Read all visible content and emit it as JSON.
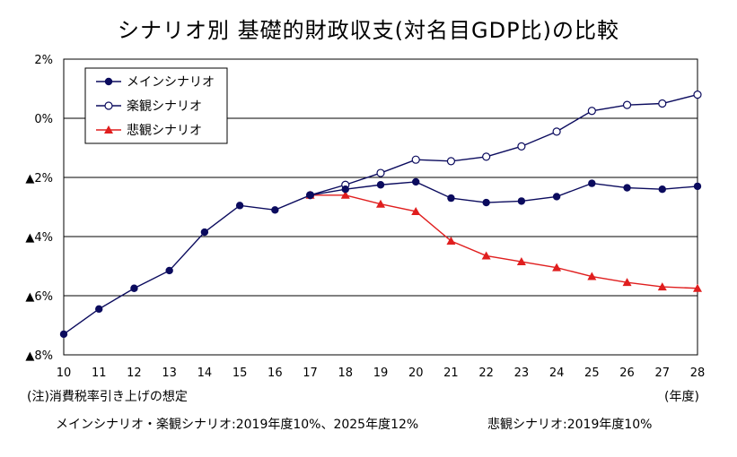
{
  "chart_data": {
    "type": "line",
    "title": "シナリオ別 基礎的財政収支(対名目GDP比)の比較",
    "x": [
      10,
      11,
      12,
      13,
      14,
      15,
      16,
      17,
      18,
      19,
      20,
      21,
      22,
      23,
      24,
      25,
      26,
      27,
      28
    ],
    "xlim": [
      10,
      28
    ],
    "ylim": [
      -8,
      2
    ],
    "y_ticks": [
      2,
      0,
      -2,
      -4,
      -6,
      -8
    ],
    "y_tick_labels": [
      "2%",
      "0%",
      "▲2%",
      "▲4%",
      "▲6%",
      "▲8%"
    ],
    "x_unit": "(年度)",
    "grid": true,
    "legend_position": "top-left",
    "series": [
      {
        "name": "メインシナリオ",
        "color": "#0b0b5e",
        "marker": "filled-circle",
        "x": [
          10,
          11,
          12,
          13,
          14,
          15,
          16,
          17,
          18,
          19,
          20,
          21,
          22,
          23,
          24,
          25,
          26,
          27,
          28
        ],
        "values": [
          -7.3,
          -6.45,
          -5.75,
          -5.15,
          -3.85,
          -2.95,
          -3.1,
          -2.6,
          -2.4,
          -2.25,
          -2.15,
          -2.7,
          -2.85,
          -2.8,
          -2.65,
          -2.2,
          -2.35,
          -2.4,
          -2.3
        ]
      },
      {
        "name": "楽観シナリオ",
        "color": "#0b0b5e",
        "marker": "open-circle",
        "x": [
          17,
          18,
          19,
          20,
          21,
          22,
          23,
          24,
          25,
          26,
          27,
          28
        ],
        "values": [
          -2.6,
          -2.25,
          -1.85,
          -1.4,
          -1.45,
          -1.3,
          -0.95,
          -0.45,
          0.25,
          0.45,
          0.5,
          0.8
        ]
      },
      {
        "name": "悲観シナリオ",
        "color": "#e01e1e",
        "marker": "triangle",
        "x": [
          17,
          18,
          19,
          20,
          21,
          22,
          23,
          24,
          25,
          26,
          27,
          28
        ],
        "values": [
          -2.6,
          -2.6,
          -2.9,
          -3.15,
          -4.15,
          -4.65,
          -4.85,
          -5.05,
          -5.35,
          -5.55,
          -5.7,
          -5.75
        ]
      }
    ]
  },
  "notes": {
    "line1": "(注)消費税率引き上げの想定",
    "line2": "メインシナリオ・楽観シナリオ:2019年度10%、2025年度12%",
    "line3": "悲観シナリオ:2019年度10%"
  }
}
